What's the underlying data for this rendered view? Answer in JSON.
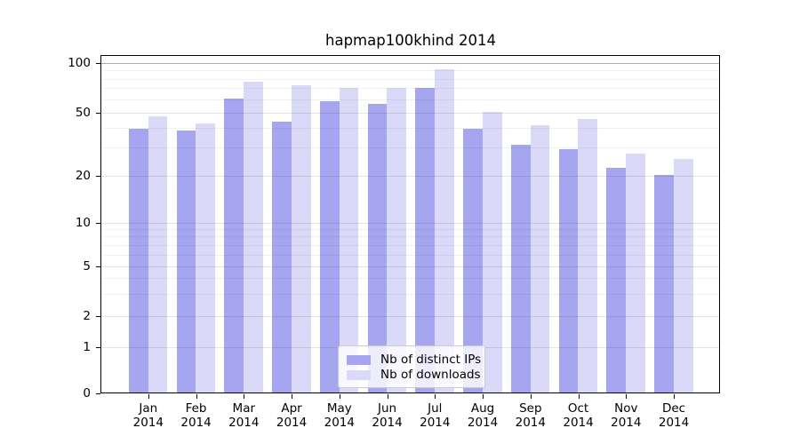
{
  "chart_data": {
    "type": "bar",
    "title": "hapmap100khind 2014",
    "x_months": [
      "Jan",
      "Feb",
      "Mar",
      "Apr",
      "May",
      "Jun",
      "Jul",
      "Aug",
      "Sep",
      "Oct",
      "Nov",
      "Dec"
    ],
    "x_year": "2014",
    "series": [
      {
        "name": "Nb of distinct IPs",
        "color": "#a5a5f0",
        "values": [
          39,
          38,
          60,
          43,
          58,
          56,
          70,
          39,
          31,
          29,
          22,
          20
        ]
      },
      {
        "name": "Nb of downloads",
        "color": "#dadaf8",
        "values": [
          47,
          42,
          76,
          72,
          70,
          70,
          90,
          50,
          41,
          45,
          27,
          25
        ]
      }
    ],
    "y_axis": {
      "scale": "log-like",
      "tick_values": [
        100,
        50,
        20,
        10,
        5,
        2,
        1,
        0
      ],
      "tick_labels": [
        "100",
        "50",
        "20",
        "10",
        "5",
        "2",
        "1",
        "0"
      ],
      "minor_gridlines": [
        3,
        4,
        6,
        7,
        8,
        9,
        30,
        40,
        60,
        70,
        80,
        90
      ]
    },
    "legend": {
      "position": "bottom-center"
    },
    "grid": "on"
  }
}
